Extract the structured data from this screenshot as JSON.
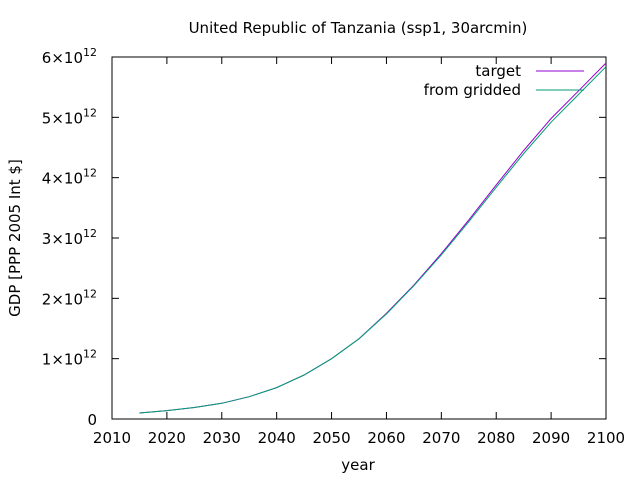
{
  "chart_data": {
    "type": "line",
    "title": "United Republic of Tanzania (ssp1, 30arcmin)",
    "xlabel": "year",
    "ylabel": "GDP [PPP 2005 Int $]",
    "xlim": [
      2010,
      2100
    ],
    "ylim": [
      0,
      6000000000000.0
    ],
    "xticks": [
      2010,
      2020,
      2030,
      2040,
      2050,
      2060,
      2070,
      2080,
      2090,
      2100
    ],
    "yticks": [
      {
        "value": 0,
        "mantissa": "0",
        "exp": ""
      },
      {
        "value": 1000000000000.0,
        "mantissa": "1×10",
        "exp": "12"
      },
      {
        "value": 2000000000000.0,
        "mantissa": "2×10",
        "exp": "12"
      },
      {
        "value": 3000000000000.0,
        "mantissa": "3×10",
        "exp": "12"
      },
      {
        "value": 4000000000000.0,
        "mantissa": "4×10",
        "exp": "12"
      },
      {
        "value": 5000000000000.0,
        "mantissa": "5×10",
        "exp": "12"
      },
      {
        "value": 6000000000000.0,
        "mantissa": "6×10",
        "exp": "12"
      }
    ],
    "grid": false,
    "legend_position": "top-right",
    "series": [
      {
        "name": "target",
        "color": "#9400d3",
        "x": [
          2015,
          2020,
          2025,
          2030,
          2035,
          2040,
          2045,
          2050,
          2055,
          2060,
          2065,
          2070,
          2075,
          2080,
          2085,
          2090,
          2095,
          2100
        ],
        "y": [
          100000000000.0,
          140000000000.0,
          190000000000.0,
          260000000000.0,
          370000000000.0,
          520000000000.0,
          730000000000.0,
          1000000000000.0,
          1330000000000.0,
          1750000000000.0,
          2220000000000.0,
          2740000000000.0,
          3300000000000.0,
          3880000000000.0,
          4450000000000.0,
          4980000000000.0,
          5440000000000.0,
          5900000000000.0
        ]
      },
      {
        "name": "from gridded",
        "color": "#009e73",
        "x": [
          2015,
          2020,
          2025,
          2030,
          2035,
          2040,
          2045,
          2050,
          2055,
          2060,
          2065,
          2070,
          2075,
          2080,
          2085,
          2090,
          2095,
          2100
        ],
        "y": [
          100000000000.0,
          140000000000.0,
          190000000000.0,
          260000000000.0,
          370000000000.0,
          520000000000.0,
          730000000000.0,
          1000000000000.0,
          1330000000000.0,
          1740000000000.0,
          2210000000000.0,
          2720000000000.0,
          3270000000000.0,
          3840000000000.0,
          4400000000000.0,
          4920000000000.0,
          5380000000000.0,
          5840000000000.0
        ]
      }
    ]
  }
}
